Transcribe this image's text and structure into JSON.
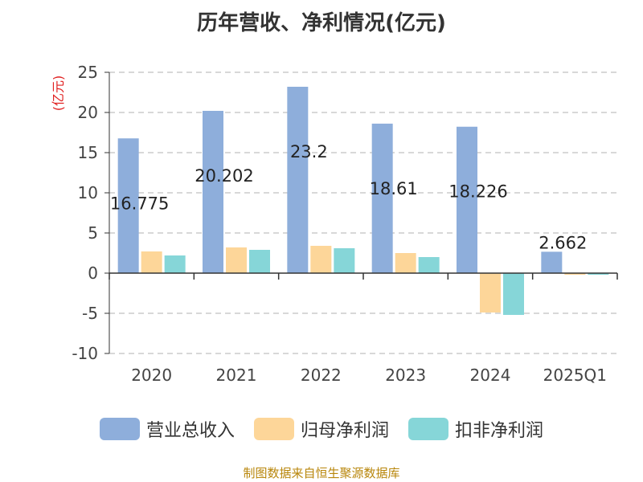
{
  "chart_data": {
    "type": "bar",
    "title": "历年营收、净利情况(亿元)",
    "ylabel": "(亿元)",
    "xlabel": "",
    "categories": [
      "2020",
      "2021",
      "2022",
      "2023",
      "2024",
      "2025Q1"
    ],
    "ylim": [
      -10,
      25
    ],
    "yticks": [
      25,
      20,
      15,
      10,
      5,
      0,
      -5,
      -10
    ],
    "grid": true,
    "legend_position": "bottom",
    "series": [
      {
        "name": "营业总收入",
        "color": "#8eaedb",
        "values": [
          16.775,
          20.202,
          23.2,
          18.61,
          18.226,
          2.662
        ]
      },
      {
        "name": "归母净利润",
        "color": "#fdd699",
        "values": [
          2.7,
          3.2,
          3.4,
          2.5,
          -4.9,
          -0.2
        ]
      },
      {
        "name": "扣非净利润",
        "color": "#86d6d8",
        "values": [
          2.2,
          2.9,
          3.1,
          2.0,
          -5.2,
          -0.2
        ]
      }
    ],
    "data_labels": [
      "16.775",
      "20.202",
      "23.2",
      "18.61",
      "18.226",
      "2.662"
    ]
  },
  "footer": {
    "credit": "制图数据来自恒生聚源数据库"
  }
}
